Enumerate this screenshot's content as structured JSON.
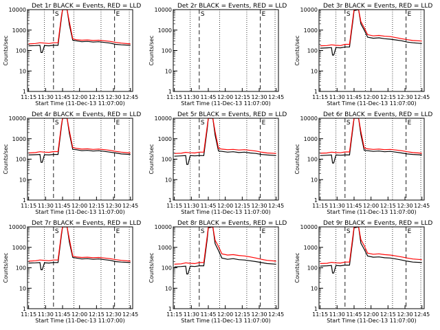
{
  "figure": {
    "x_axis_label": "Start Time (11-Dec-13 11:07:00)",
    "y_axis_label": "Counts/sec",
    "x_tick_labels": [
      "11:15",
      "11:30",
      "11:45",
      "12:00",
      "12:15",
      "12:30",
      "12:45"
    ],
    "y_tick_labels": [
      "1",
      "10",
      "100",
      "1000",
      "10000"
    ],
    "colors": {
      "events": "#000000",
      "lld": "#ff0000",
      "axes": "#000000",
      "background": "#ffffff"
    }
  },
  "chart_data": [
    {
      "type": "line",
      "title": "Det 1r BLACK = Events, RED = LLD",
      "xlabel": "Start Time (11-Dec-13 11:07:00)",
      "ylabel": "Counts/sec",
      "x_unit": "minutes after 11:07:00",
      "xlim": [
        7,
        100
      ],
      "ylim": [
        1,
        10000
      ],
      "y_scale": "log",
      "markers": [
        {
          "label": "S",
          "time": "11:37"
        },
        {
          "label": "E",
          "time": "12:31"
        }
      ],
      "series": [
        {
          "name": "Events",
          "color": "#000000",
          "x": [
            8,
            14,
            18,
            19,
            20,
            22,
            26,
            30,
            34,
            37,
            38,
            42,
            44,
            47,
            50,
            55,
            60,
            65,
            70,
            75,
            80,
            85,
            90,
            98
          ],
          "y": [
            170,
            175,
            180,
            80,
            80,
            175,
            170,
            180,
            180,
            4000,
            10000,
            10000,
            1800,
            320,
            300,
            270,
            280,
            260,
            270,
            250,
            230,
            200,
            190,
            180
          ]
        },
        {
          "name": "LLD",
          "color": "#ff0000",
          "x": [
            8,
            14,
            18,
            22,
            26,
            30,
            34,
            37,
            38,
            42,
            44,
            47,
            50,
            55,
            60,
            65,
            70,
            75,
            80,
            85,
            90,
            98
          ],
          "y": [
            210,
            220,
            240,
            230,
            220,
            240,
            240,
            5000,
            10000,
            10000,
            2500,
            380,
            340,
            320,
            330,
            310,
            320,
            300,
            280,
            250,
            230,
            210
          ]
        }
      ]
    },
    {
      "type": "line",
      "title": "Det 2r BLACK = Events, RED = LLD",
      "xlabel": "Start Time (11-Dec-13 11:07:00)",
      "ylabel": "Counts/sec",
      "x_unit": "minutes after 11:07:00",
      "xlim": [
        7,
        100
      ],
      "ylim": [
        1,
        10000
      ],
      "y_scale": "log",
      "markers": [
        {
          "label": "S",
          "time": "11:37"
        },
        {
          "label": "E",
          "time": "12:31"
        }
      ],
      "series": []
    },
    {
      "type": "line",
      "title": "Det 3r BLACK = Events, RED = LLD",
      "xlabel": "Start Time (11-Dec-13 11:07:00)",
      "ylabel": "Counts/sec",
      "x_unit": "minutes after 11:07:00",
      "xlim": [
        7,
        100
      ],
      "ylim": [
        1,
        10000
      ],
      "y_scale": "log",
      "markers": [
        {
          "label": "S",
          "time": "11:37"
        },
        {
          "label": "E",
          "time": "12:31"
        }
      ],
      "series": [
        {
          "name": "Events",
          "color": "#000000",
          "x": [
            8,
            14,
            18,
            19,
            20,
            22,
            26,
            30,
            34,
            37,
            38,
            42,
            44,
            47,
            50,
            55,
            60,
            65,
            70,
            75,
            80,
            85,
            90,
            98
          ],
          "y": [
            130,
            135,
            140,
            60,
            60,
            140,
            135,
            150,
            150,
            3000,
            9000,
            10000,
            2000,
            1000,
            450,
            400,
            420,
            380,
            360,
            330,
            300,
            260,
            240,
            220
          ]
        },
        {
          "name": "LLD",
          "color": "#ff0000",
          "x": [
            8,
            14,
            18,
            22,
            26,
            30,
            34,
            37,
            38,
            42,
            44,
            47,
            50,
            55,
            60,
            65,
            70,
            75,
            80,
            85,
            90,
            98
          ],
          "y": [
            170,
            175,
            190,
            180,
            175,
            200,
            200,
            4000,
            10000,
            10000,
            2600,
            1300,
            600,
            520,
            550,
            500,
            480,
            430,
            380,
            340,
            310,
            290
          ]
        }
      ]
    },
    {
      "type": "line",
      "title": "Det 4r BLACK = Events, RED = LLD",
      "xlabel": "Start Time (11-Dec-13 11:07:00)",
      "ylabel": "Counts/sec",
      "x_unit": "minutes after 11:07:00",
      "xlim": [
        7,
        100
      ],
      "ylim": [
        1,
        10000
      ],
      "y_scale": "log",
      "markers": [
        {
          "label": "S",
          "time": "11:37"
        },
        {
          "label": "E",
          "time": "12:31"
        }
      ],
      "series": [
        {
          "name": "Events",
          "color": "#000000",
          "x": [
            8,
            14,
            18,
            19,
            20,
            22,
            26,
            30,
            34,
            37,
            38,
            42,
            44,
            47,
            50,
            55,
            60,
            65,
            70,
            75,
            80,
            85,
            90,
            98
          ],
          "y": [
            160,
            165,
            170,
            70,
            70,
            165,
            160,
            170,
            170,
            4000,
            10000,
            10000,
            1800,
            300,
            290,
            260,
            270,
            250,
            260,
            240,
            220,
            200,
            180,
            170
          ]
        },
        {
          "name": "LLD",
          "color": "#ff0000",
          "x": [
            8,
            14,
            18,
            22,
            26,
            30,
            34,
            37,
            38,
            42,
            44,
            47,
            50,
            55,
            60,
            65,
            70,
            75,
            80,
            85,
            90,
            98
          ],
          "y": [
            200,
            210,
            230,
            220,
            215,
            235,
            235,
            5000,
            10000,
            10000,
            2400,
            370,
            340,
            310,
            320,
            300,
            310,
            290,
            270,
            240,
            220,
            200
          ]
        }
      ]
    },
    {
      "type": "line",
      "title": "Det 5r BLACK = Events, RED = LLD",
      "xlabel": "Start Time (11-Dec-13 11:07:00)",
      "ylabel": "Counts/sec",
      "x_unit": "minutes after 11:07:00",
      "xlim": [
        7,
        100
      ],
      "ylim": [
        1,
        10000
      ],
      "y_scale": "log",
      "markers": [
        {
          "label": "S",
          "time": "11:37"
        },
        {
          "label": "E",
          "time": "12:31"
        }
      ],
      "series": [
        {
          "name": "Events",
          "color": "#000000",
          "x": [
            8,
            14,
            18,
            19,
            20,
            22,
            26,
            30,
            34,
            37,
            38,
            42,
            44,
            47,
            50,
            55,
            60,
            65,
            70,
            75,
            80,
            85,
            90,
            98
          ],
          "y": [
            140,
            145,
            150,
            55,
            55,
            150,
            145,
            150,
            150,
            3000,
            10000,
            10000,
            1500,
            250,
            240,
            220,
            230,
            210,
            220,
            200,
            190,
            170,
            160,
            150
          ]
        },
        {
          "name": "LLD",
          "color": "#ff0000",
          "x": [
            8,
            14,
            18,
            22,
            26,
            30,
            34,
            37,
            38,
            42,
            44,
            47,
            50,
            55,
            60,
            65,
            70,
            75,
            80,
            85,
            90,
            98
          ],
          "y": [
            190,
            195,
            215,
            205,
            200,
            220,
            220,
            4000,
            10000,
            10000,
            2200,
            340,
            310,
            290,
            300,
            280,
            290,
            270,
            250,
            220,
            200,
            190
          ]
        }
      ]
    },
    {
      "type": "line",
      "title": "Det 6r BLACK = Events, RED = LLD",
      "xlabel": "Start Time (11-Dec-13 11:07:00)",
      "ylabel": "Counts/sec",
      "x_unit": "minutes after 11:07:00",
      "xlim": [
        7,
        100
      ],
      "ylim": [
        1,
        10000
      ],
      "y_scale": "log",
      "markers": [
        {
          "label": "S",
          "time": "11:37"
        },
        {
          "label": "E",
          "time": "12:31"
        }
      ],
      "series": [
        {
          "name": "Events",
          "color": "#000000",
          "x": [
            8,
            14,
            18,
            19,
            20,
            22,
            26,
            30,
            34,
            37,
            38,
            42,
            44,
            47,
            50,
            55,
            60,
            65,
            70,
            75,
            80,
            85,
            90,
            98
          ],
          "y": [
            150,
            155,
            160,
            65,
            65,
            160,
            155,
            160,
            160,
            3500,
            10000,
            10000,
            1600,
            270,
            260,
            240,
            250,
            230,
            240,
            220,
            200,
            180,
            170,
            160
          ]
        },
        {
          "name": "LLD",
          "color": "#ff0000",
          "x": [
            8,
            14,
            18,
            22,
            26,
            30,
            34,
            37,
            38,
            42,
            44,
            47,
            50,
            55,
            60,
            65,
            70,
            75,
            80,
            85,
            90,
            98
          ],
          "y": [
            195,
            200,
            220,
            210,
            205,
            225,
            225,
            4500,
            10000,
            10000,
            2300,
            350,
            320,
            300,
            310,
            290,
            300,
            280,
            260,
            230,
            210,
            195
          ]
        }
      ]
    },
    {
      "type": "line",
      "title": "Det 7r BLACK = Events, RED = LLD",
      "xlabel": "Start Time (11-Dec-13 11:07:00)",
      "ylabel": "Counts/sec",
      "x_unit": "minutes after 11:07:00",
      "xlim": [
        7,
        100
      ],
      "ylim": [
        1,
        10000
      ],
      "y_scale": "log",
      "markers": [
        {
          "label": "S",
          "time": "11:37"
        },
        {
          "label": "E",
          "time": "12:31"
        }
      ],
      "series": [
        {
          "name": "Events",
          "color": "#000000",
          "x": [
            8,
            14,
            18,
            19,
            20,
            22,
            26,
            30,
            34,
            37,
            38,
            42,
            44,
            47,
            50,
            55,
            60,
            65,
            70,
            75,
            80,
            85,
            90,
            98
          ],
          "y": [
            170,
            175,
            180,
            80,
            80,
            175,
            170,
            180,
            180,
            4000,
            10000,
            10000,
            1800,
            320,
            300,
            270,
            280,
            260,
            270,
            250,
            230,
            200,
            190,
            180
          ]
        },
        {
          "name": "LLD",
          "color": "#ff0000",
          "x": [
            8,
            14,
            18,
            22,
            26,
            30,
            34,
            37,
            38,
            42,
            44,
            47,
            50,
            55,
            60,
            65,
            70,
            75,
            80,
            85,
            90,
            98
          ],
          "y": [
            210,
            220,
            240,
            230,
            220,
            240,
            240,
            5000,
            10000,
            10000,
            2500,
            380,
            340,
            320,
            330,
            310,
            320,
            300,
            280,
            250,
            230,
            210
          ]
        }
      ]
    },
    {
      "type": "line",
      "title": "Det 8r BLACK = Events, RED = LLD",
      "xlabel": "Start Time (11-Dec-13 11:07:00)",
      "ylabel": "Counts/sec",
      "x_unit": "minutes after 11:07:00",
      "xlim": [
        7,
        100
      ],
      "ylim": [
        1,
        10000
      ],
      "y_scale": "log",
      "markers": [
        {
          "label": "S",
          "time": "11:37"
        },
        {
          "label": "E",
          "time": "12:31"
        }
      ],
      "series": [
        {
          "name": "Events",
          "color": "#000000",
          "x": [
            8,
            14,
            18,
            19,
            20,
            22,
            26,
            30,
            34,
            37,
            38,
            42,
            44,
            47,
            50,
            55,
            60,
            65,
            70,
            75,
            80,
            85,
            90,
            98
          ],
          "y": [
            110,
            115,
            120,
            50,
            50,
            120,
            115,
            125,
            125,
            2500,
            9000,
            10000,
            1500,
            700,
            300,
            260,
            280,
            250,
            240,
            220,
            200,
            180,
            160,
            150
          ]
        },
        {
          "name": "LLD",
          "color": "#ff0000",
          "x": [
            8,
            14,
            18,
            22,
            26,
            30,
            34,
            37,
            38,
            42,
            44,
            47,
            50,
            55,
            60,
            65,
            70,
            75,
            80,
            85,
            90,
            98
          ],
          "y": [
            150,
            155,
            175,
            165,
            160,
            180,
            180,
            3500,
            10000,
            10000,
            2200,
            1100,
            480,
            420,
            440,
            400,
            380,
            340,
            300,
            260,
            230,
            210
          ]
        }
      ]
    },
    {
      "type": "line",
      "title": "Det 9r BLACK = Events, RED = LLD",
      "xlabel": "Start Time (11-Dec-13 11:07:00)",
      "ylabel": "Counts/sec",
      "x_unit": "minutes after 11:07:00",
      "xlim": [
        7,
        100
      ],
      "ylim": [
        1,
        10000
      ],
      "y_scale": "log",
      "markers": [
        {
          "label": "S",
          "time": "11:37"
        },
        {
          "label": "E",
          "time": "12:31"
        }
      ],
      "series": [
        {
          "name": "Events",
          "color": "#000000",
          "x": [
            8,
            14,
            18,
            19,
            20,
            22,
            26,
            30,
            34,
            37,
            38,
            42,
            44,
            47,
            50,
            55,
            60,
            65,
            70,
            75,
            80,
            85,
            90,
            98
          ],
          "y": [
            120,
            125,
            130,
            55,
            55,
            130,
            125,
            135,
            135,
            2800,
            9000,
            10000,
            1600,
            800,
            380,
            330,
            340,
            310,
            300,
            270,
            240,
            210,
            190,
            180
          ]
        },
        {
          "name": "LLD",
          "color": "#ff0000",
          "x": [
            8,
            14,
            18,
            22,
            26,
            30,
            34,
            37,
            38,
            42,
            44,
            47,
            50,
            55,
            60,
            65,
            70,
            75,
            80,
            85,
            90,
            98
          ],
          "y": [
            160,
            165,
            185,
            175,
            170,
            190,
            190,
            3800,
            10000,
            10000,
            2400,
            1200,
            520,
            460,
            480,
            440,
            420,
            380,
            340,
            300,
            270,
            250
          ]
        }
      ]
    }
  ]
}
